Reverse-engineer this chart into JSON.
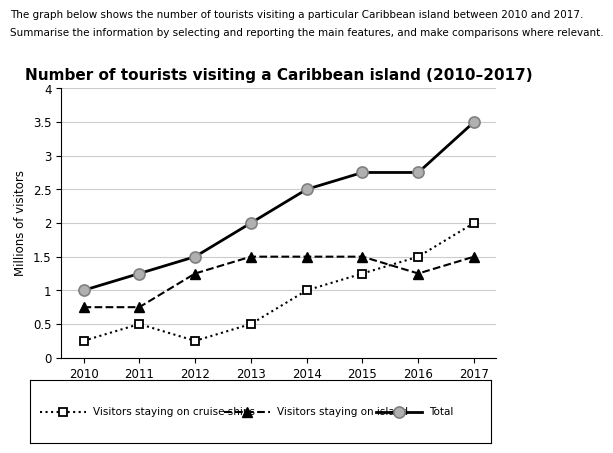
{
  "title": "Number of tourists visiting a Caribbean island (2010–2017)",
  "header_line1": "The graph below shows the number of tourists visiting a particular Caribbean island between 2010 and 2017.",
  "header_line2": "Summarise the information by selecting and reporting the main features, and make comparisons where relevant.",
  "ylabel": "Millions of visitors",
  "years": [
    2010,
    2011,
    2012,
    2013,
    2014,
    2015,
    2016,
    2017
  ],
  "cruise_ships": [
    0.25,
    0.5,
    0.25,
    0.5,
    1.0,
    1.25,
    1.5,
    2.0
  ],
  "island": [
    0.75,
    0.75,
    1.25,
    1.5,
    1.5,
    1.5,
    1.25,
    1.5
  ],
  "total": [
    1.0,
    1.25,
    1.5,
    2.0,
    2.5,
    2.75,
    2.75,
    3.5
  ],
  "ylim": [
    0,
    4
  ],
  "yticks": [
    0,
    0.5,
    1.0,
    1.5,
    2.0,
    2.5,
    3.0,
    3.5,
    4.0
  ],
  "ytick_labels": [
    "0",
    "0.5",
    "1",
    "1.5",
    "2",
    "2.5",
    "3",
    "3.5",
    "4"
  ],
  "bg_color": "#ffffff",
  "grid_color": "#cccccc",
  "title_fontsize": 11,
  "header_fontsize": 7.5,
  "legend_labels": [
    "Visitors staying on cruise ships",
    "Visitors staying on island",
    "Total"
  ]
}
